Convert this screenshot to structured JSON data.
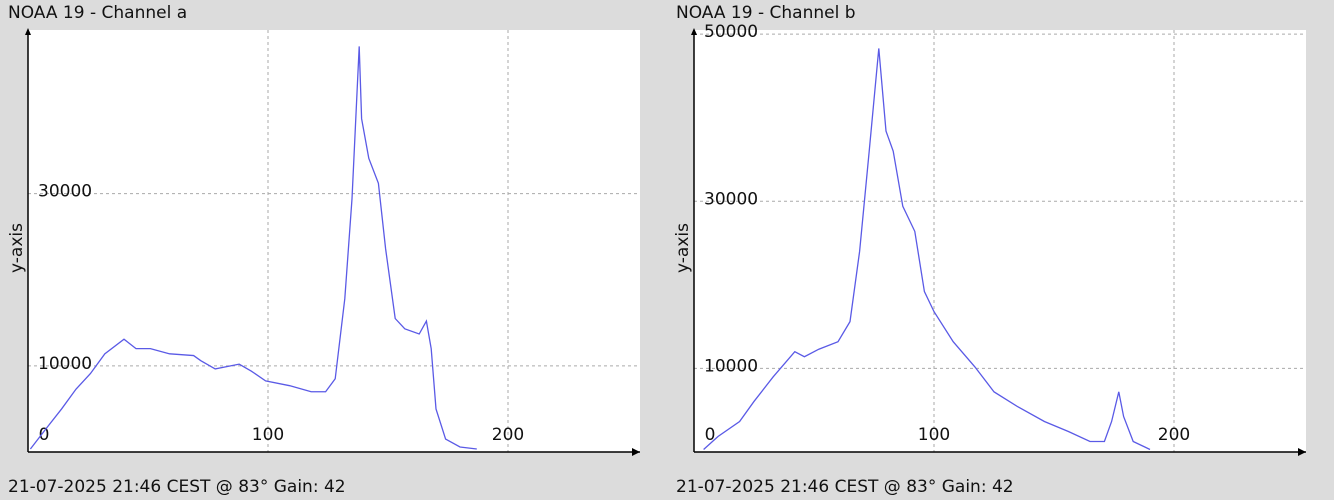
{
  "chart_data": [
    {
      "type": "line",
      "title": "NOAA 19 - Channel a",
      "footer": "21-07-2025 21:46 CEST @ 83° Gain: 42",
      "ylabel": "y-axis",
      "x": [
        1,
        7.5,
        14,
        20,
        26,
        32,
        40,
        45,
        51,
        59,
        69,
        72,
        78,
        88,
        93,
        99,
        109,
        118,
        124,
        128,
        132,
        135,
        138,
        139,
        142,
        146,
        149,
        153,
        157,
        163,
        166,
        168,
        170,
        174,
        180,
        187
      ],
      "values": [
        350,
        2700,
        5000,
        7300,
        9100,
        11400,
        13100,
        12000,
        12000,
        11400,
        11200,
        10600,
        9650,
        10200,
        9400,
        8260,
        7700,
        7000,
        7000,
        8500,
        17800,
        29400,
        47100,
        38700,
        34100,
        31200,
        23600,
        15500,
        14300,
        13700,
        15200,
        12000,
        5000,
        1500,
        580,
        350
      ],
      "color": "#5a5ae6",
      "xlim": [
        0,
        255
      ],
      "ylim": [
        0,
        49000
      ],
      "xticks": [
        0,
        100,
        200
      ],
      "yticks": [
        10000,
        30000
      ],
      "grid": true
    },
    {
      "type": "line",
      "title": "NOAA 19 - Channel b",
      "footer": "21-07-2025 21:46 CEST @ 83° Gain: 42",
      "ylabel": "y-axis",
      "x": [
        4,
        10,
        19,
        25,
        33,
        42,
        46,
        52,
        60,
        65,
        69,
        73,
        77,
        80,
        83,
        87,
        92,
        96,
        100,
        108,
        117,
        125,
        135,
        146,
        156,
        165,
        171,
        174,
        177,
        179,
        183,
        190
      ],
      "values": [
        300,
        1860,
        3650,
        6050,
        9000,
        12000,
        11400,
        12300,
        13200,
        15600,
        24000,
        36000,
        48300,
        38400,
        36000,
        29400,
        26400,
        19200,
        16800,
        13200,
        10200,
        7200,
        5400,
        3650,
        2450,
        1260,
        1260,
        3650,
        7200,
        4250,
        1260,
        300
      ],
      "color": "#5a5ae6",
      "xlim": [
        0,
        255
      ],
      "ylim": [
        0,
        50500
      ],
      "xticks": [
        0,
        100,
        200
      ],
      "yticks": [
        10000,
        30000,
        50000
      ],
      "grid": true
    }
  ]
}
